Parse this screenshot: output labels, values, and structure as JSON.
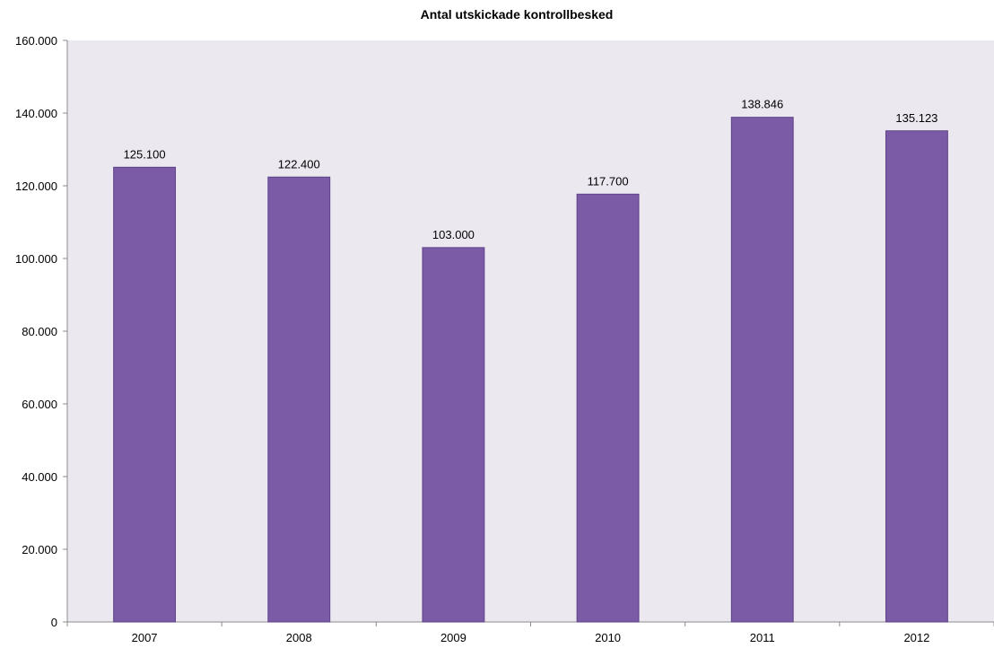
{
  "chart_data": {
    "type": "bar",
    "title": "Antal utskickade kontrollbesked",
    "categories": [
      "2007",
      "2008",
      "2009",
      "2010",
      "2011",
      "2012"
    ],
    "values": [
      125100,
      122400,
      103000,
      117700,
      138846,
      135123
    ],
    "value_labels": [
      "125.100",
      "122.400",
      "103.000",
      "117.700",
      "138.846",
      "135.123"
    ],
    "ylim": [
      0,
      160000
    ],
    "y_ticks": [
      0,
      20000,
      40000,
      60000,
      80000,
      100000,
      120000,
      140000,
      160000
    ],
    "y_tick_labels": [
      "0",
      "20.000",
      "40.000",
      "60.000",
      "80.000",
      "100.000",
      "120.000",
      "140.000",
      "160.000"
    ],
    "xlabel": "",
    "ylabel": "",
    "grid": false,
    "legend": "none",
    "colors": {
      "bar": "#7b5aa6",
      "bar_edge": "#5e4387",
      "plot_background": "#ebe8f0",
      "axis": "#8c8c8c"
    }
  }
}
